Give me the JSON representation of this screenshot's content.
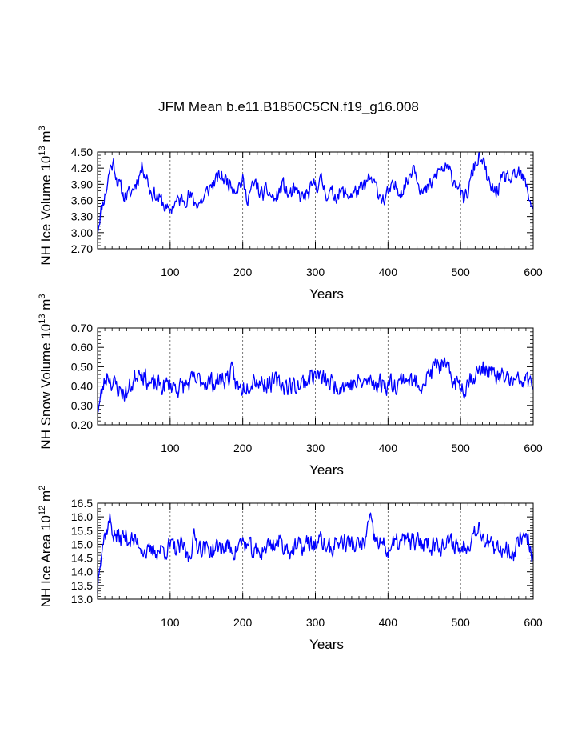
{
  "title": "JFM Mean b.e11.B1850C5CN.f19_g16.008",
  "line_color": "#0000ff",
  "chart_data": [
    {
      "type": "line",
      "ylabel": {
        "base": "NH Ice Volume 10",
        "exp": "13",
        "unit": " m",
        "unit_exp": "3"
      },
      "xlabel": "Years",
      "xlim": [
        0,
        600
      ],
      "ylim": [
        2.7,
        4.5
      ],
      "xticks": [
        100,
        200,
        300,
        400,
        500,
        600
      ],
      "yticks": [
        "2.70",
        "3.00",
        "3.30",
        "3.60",
        "3.90",
        "4.20",
        "4.50"
      ],
      "grid_x": [
        100,
        200,
        300,
        400,
        500
      ],
      "anchors": [
        [
          0,
          3.05
        ],
        [
          3,
          3.3
        ],
        [
          7,
          3.55
        ],
        [
          12,
          3.8
        ],
        [
          17,
          4.2
        ],
        [
          22,
          4.3
        ],
        [
          28,
          3.95
        ],
        [
          35,
          3.7
        ],
        [
          45,
          3.7
        ],
        [
          55,
          4.0
        ],
        [
          62,
          4.25
        ],
        [
          68,
          4.05
        ],
        [
          72,
          3.8
        ],
        [
          80,
          3.7
        ],
        [
          90,
          3.55
        ],
        [
          98,
          3.35
        ],
        [
          105,
          3.55
        ],
        [
          115,
          3.6
        ],
        [
          125,
          3.7
        ],
        [
          135,
          3.55
        ],
        [
          145,
          3.6
        ],
        [
          155,
          3.85
        ],
        [
          162,
          3.95
        ],
        [
          170,
          4.05
        ],
        [
          180,
          3.95
        ],
        [
          190,
          3.85
        ],
        [
          200,
          3.95
        ],
        [
          205,
          3.65
        ],
        [
          212,
          3.8
        ],
        [
          218,
          3.9
        ],
        [
          225,
          3.7
        ],
        [
          235,
          3.75
        ],
        [
          245,
          3.6
        ],
        [
          255,
          3.9
        ],
        [
          262,
          3.7
        ],
        [
          270,
          3.75
        ],
        [
          280,
          3.65
        ],
        [
          290,
          3.7
        ],
        [
          300,
          3.9
        ],
        [
          308,
          3.95
        ],
        [
          315,
          3.75
        ],
        [
          325,
          3.7
        ],
        [
          335,
          3.75
        ],
        [
          345,
          3.7
        ],
        [
          355,
          3.75
        ],
        [
          365,
          3.8
        ],
        [
          375,
          4.0
        ],
        [
          385,
          3.8
        ],
        [
          395,
          3.6
        ],
        [
          402,
          3.75
        ],
        [
          410,
          3.85
        ],
        [
          420,
          3.8
        ],
        [
          428,
          4.0
        ],
        [
          435,
          4.3
        ],
        [
          442,
          4.0
        ],
        [
          448,
          3.7
        ],
        [
          455,
          3.8
        ],
        [
          462,
          3.95
        ],
        [
          470,
          4.15
        ],
        [
          480,
          4.2
        ],
        [
          490,
          4.0
        ],
        [
          498,
          3.9
        ],
        [
          503,
          3.55
        ],
        [
          510,
          3.75
        ],
        [
          518,
          4.2
        ],
        [
          525,
          4.4
        ],
        [
          532,
          4.25
        ],
        [
          540,
          3.85
        ],
        [
          548,
          3.75
        ],
        [
          555,
          3.9
        ],
        [
          563,
          4.05
        ],
        [
          572,
          3.95
        ],
        [
          580,
          4.1
        ],
        [
          588,
          3.95
        ],
        [
          595,
          3.65
        ],
        [
          600,
          3.45
        ]
      ],
      "noise_amp": 0.13,
      "seed": 11
    },
    {
      "type": "line",
      "ylabel": {
        "base": "NH Snow Volume 10",
        "exp": "13",
        "unit": " m",
        "unit_exp": "3"
      },
      "xlabel": "Years",
      "xlim": [
        0,
        600
      ],
      "ylim": [
        0.2,
        0.7
      ],
      "xticks": [
        100,
        200,
        300,
        400,
        500,
        600
      ],
      "yticks": [
        "0.20",
        "0.30",
        "0.40",
        "0.50",
        "0.60",
        "0.70"
      ],
      "grid_x": [
        100,
        200,
        300,
        400,
        500
      ],
      "anchors": [
        [
          0,
          0.28
        ],
        [
          4,
          0.33
        ],
        [
          8,
          0.4
        ],
        [
          14,
          0.47
        ],
        [
          20,
          0.42
        ],
        [
          30,
          0.38
        ],
        [
          40,
          0.36
        ],
        [
          50,
          0.43
        ],
        [
          58,
          0.5
        ],
        [
          65,
          0.45
        ],
        [
          75,
          0.4
        ],
        [
          90,
          0.4
        ],
        [
          100,
          0.41
        ],
        [
          115,
          0.39
        ],
        [
          130,
          0.42
        ],
        [
          145,
          0.43
        ],
        [
          160,
          0.42
        ],
        [
          175,
          0.44
        ],
        [
          185,
          0.46
        ],
        [
          195,
          0.38
        ],
        [
          205,
          0.41
        ],
        [
          215,
          0.45
        ],
        [
          225,
          0.42
        ],
        [
          240,
          0.42
        ],
        [
          255,
          0.41
        ],
        [
          270,
          0.4
        ],
        [
          285,
          0.42
        ],
        [
          295,
          0.46
        ],
        [
          305,
          0.45
        ],
        [
          315,
          0.42
        ],
        [
          325,
          0.41
        ],
        [
          340,
          0.41
        ],
        [
          355,
          0.41
        ],
        [
          370,
          0.42
        ],
        [
          385,
          0.42
        ],
        [
          400,
          0.41
        ],
        [
          415,
          0.42
        ],
        [
          425,
          0.45
        ],
        [
          435,
          0.41
        ],
        [
          450,
          0.43
        ],
        [
          460,
          0.47
        ],
        [
          468,
          0.52
        ],
        [
          475,
          0.5
        ],
        [
          485,
          0.46
        ],
        [
          495,
          0.41
        ],
        [
          505,
          0.4
        ],
        [
          515,
          0.45
        ],
        [
          525,
          0.47
        ],
        [
          535,
          0.5
        ],
        [
          545,
          0.45
        ],
        [
          555,
          0.44
        ],
        [
          565,
          0.44
        ],
        [
          575,
          0.41
        ],
        [
          585,
          0.43
        ],
        [
          595,
          0.42
        ],
        [
          600,
          0.41
        ]
      ],
      "noise_amp": 0.045,
      "seed": 23
    },
    {
      "type": "line",
      "ylabel": {
        "base": "NH Ice Area 10",
        "exp": "12",
        "unit": " m",
        "unit_exp": "2"
      },
      "xlabel": "Years",
      "xlim": [
        0,
        600
      ],
      "ylim": [
        13.0,
        16.5
      ],
      "xticks": [
        100,
        200,
        300,
        400,
        500,
        600
      ],
      "yticks": [
        "13.0",
        "13.5",
        "14.0",
        "14.5",
        "15.0",
        "15.5",
        "16.0",
        "16.5"
      ],
      "grid_x": [
        100,
        200,
        300,
        400,
        500
      ],
      "anchors": [
        [
          0,
          13.4
        ],
        [
          3,
          14.5
        ],
        [
          6,
          15.0
        ],
        [
          12,
          15.5
        ],
        [
          17,
          15.9
        ],
        [
          22,
          15.4
        ],
        [
          30,
          15.2
        ],
        [
          40,
          15.3
        ],
        [
          50,
          15.1
        ],
        [
          60,
          15.0
        ],
        [
          70,
          14.6
        ],
        [
          80,
          14.8
        ],
        [
          90,
          14.8
        ],
        [
          100,
          14.9
        ],
        [
          110,
          14.8
        ],
        [
          118,
          14.9
        ],
        [
          125,
          14.5
        ],
        [
          132,
          15.2
        ],
        [
          140,
          15.0
        ],
        [
          150,
          14.8
        ],
        [
          160,
          14.8
        ],
        [
          170,
          14.9
        ],
        [
          180,
          14.9
        ],
        [
          190,
          14.8
        ],
        [
          200,
          15.1
        ],
        [
          210,
          14.8
        ],
        [
          220,
          14.6
        ],
        [
          230,
          14.9
        ],
        [
          240,
          15.0
        ],
        [
          250,
          15.1
        ],
        [
          260,
          14.9
        ],
        [
          270,
          14.8
        ],
        [
          280,
          14.9
        ],
        [
          290,
          15.0
        ],
        [
          300,
          15.0
        ],
        [
          310,
          15.1
        ],
        [
          320,
          14.8
        ],
        [
          330,
          15.1
        ],
        [
          340,
          15.1
        ],
        [
          350,
          15.0
        ],
        [
          360,
          14.9
        ],
        [
          368,
          15.1
        ],
        [
          375,
          15.9
        ],
        [
          380,
          15.2
        ],
        [
          390,
          15.0
        ],
        [
          400,
          14.8
        ],
        [
          410,
          15.0
        ],
        [
          420,
          15.1
        ],
        [
          430,
          15.1
        ],
        [
          440,
          15.0
        ],
        [
          450,
          15.1
        ],
        [
          460,
          15.0
        ],
        [
          470,
          15.1
        ],
        [
          480,
          14.9
        ],
        [
          490,
          15.1
        ],
        [
          500,
          14.8
        ],
        [
          510,
          15.1
        ],
        [
          518,
          15.4
        ],
        [
          523,
          15.8
        ],
        [
          530,
          15.4
        ],
        [
          540,
          15.0
        ],
        [
          548,
          14.6
        ],
        [
          555,
          14.9
        ],
        [
          565,
          14.9
        ],
        [
          575,
          14.7
        ],
        [
          582,
          15.3
        ],
        [
          590,
          15.4
        ],
        [
          596,
          15.0
        ],
        [
          600,
          14.3
        ]
      ],
      "noise_amp": 0.32,
      "seed": 37
    }
  ]
}
